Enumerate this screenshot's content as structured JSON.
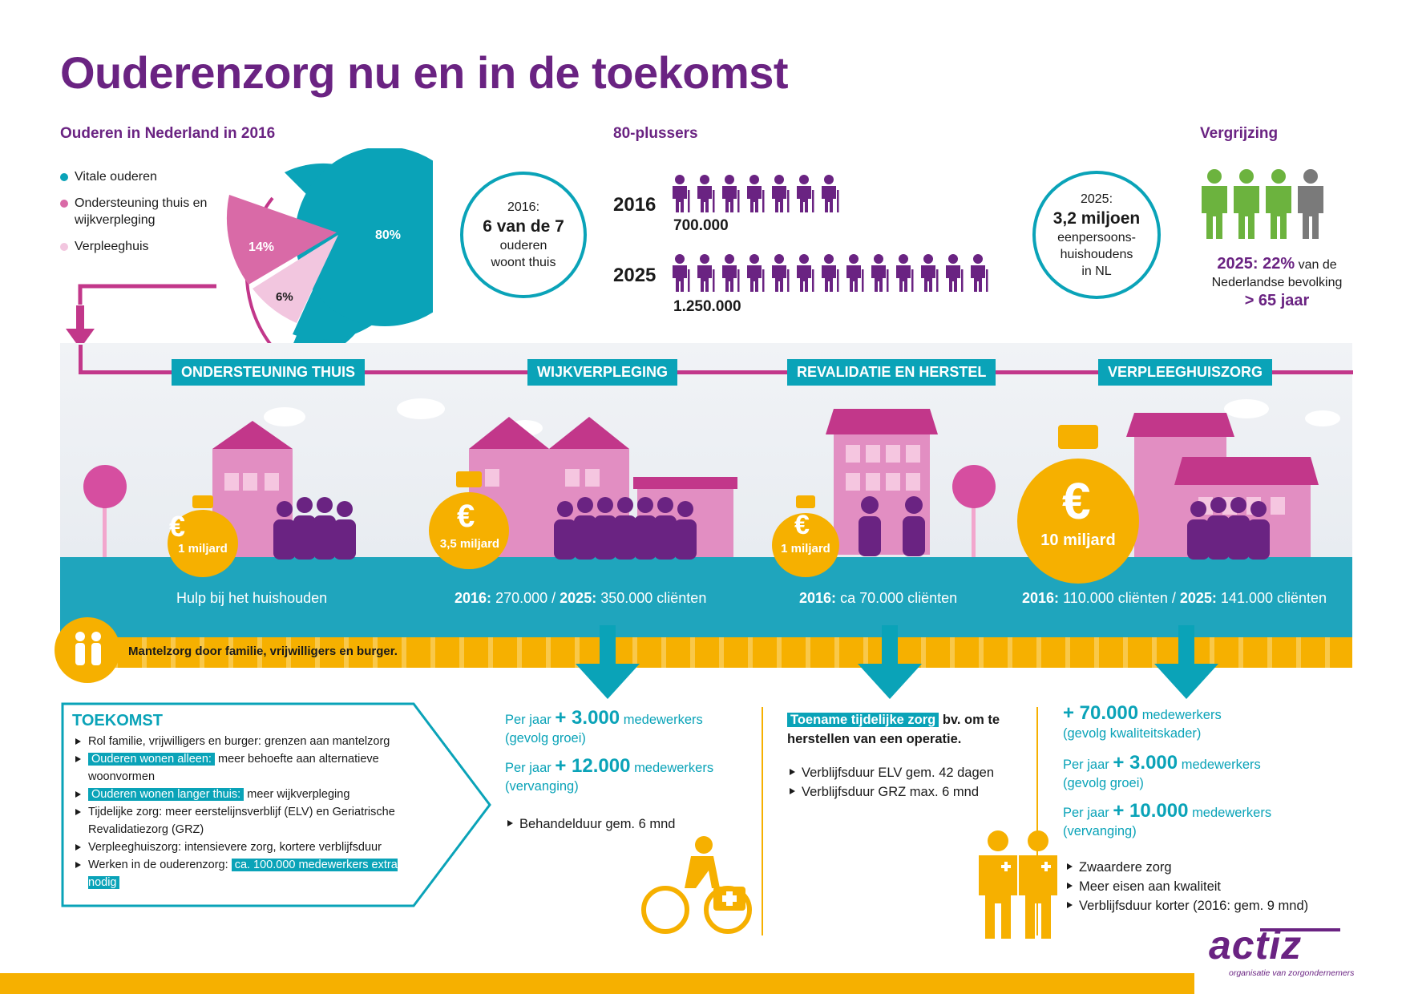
{
  "title": "Ouderenzorg nu en in de toekomst",
  "section_elderly": {
    "heading": "Ouderen in Nederland in 2016",
    "legend": [
      {
        "label": "Vitale ouderen",
        "color": "#0aa3b8"
      },
      {
        "label": "Ondersteuning thuis en wijkverpleging",
        "color": "#d96aa7"
      },
      {
        "label": "Verpleeghuis",
        "color": "#f2c6df"
      }
    ],
    "pie": {
      "vital": "80%",
      "support": "14%",
      "nursing": "6%"
    }
  },
  "badge_home": {
    "line1": "2016:",
    "line2": "6 van de 7",
    "line3": "ouderen",
    "line4": "woont thuis"
  },
  "section_80plus": {
    "heading": "80-plussers",
    "row1": {
      "year": "2016",
      "value": "700.000",
      "icons": 7
    },
    "row2": {
      "year": "2025",
      "value": "1.250.000",
      "icons": 13
    }
  },
  "badge_households": {
    "line1": "2025:",
    "line2": "3,2 miljoen",
    "line3": "eenpersoons-",
    "line4": "huishoudens",
    "line5": "in NL"
  },
  "section_aging": {
    "heading": "Vergrijzing",
    "line1_strong": "2025: 22%",
    "line1_rest": "van de",
    "line2": "Nederlandse bevolking",
    "line3": "> 65 jaar"
  },
  "timeline": {
    "labels": [
      "ONDERSTEUNING THUIS",
      "WIJKVERPLEGING",
      "REVALIDATIE EN HERSTEL",
      "VERPLEEGHUISZORG"
    ]
  },
  "scenes": [
    {
      "amount": "1 miljard",
      "euro": "€",
      "caption": "Hulp bij het huishouden"
    },
    {
      "amount": "3,5 miljard",
      "euro": "€",
      "caption_y1": "2016:",
      "caption_v1": "270.000 /",
      "caption_y2": "2025:",
      "caption_v2": "350.000 cliënten"
    },
    {
      "amount": "1 miljard",
      "euro": "€",
      "caption_y1": "2016:",
      "caption_v1": "ca 70.000 cliënten"
    },
    {
      "amount": "10 miljard",
      "euro": "€",
      "caption_y1": "2016:",
      "caption_v1": "110.000 cliënten /",
      "caption_y2": "2025:",
      "caption_v2": "141.000 cliënten"
    }
  ],
  "mantelzorg": "Mantelzorg door familie, vrijwilligers en burger.",
  "toekomst": {
    "heading": "TOEKOMST",
    "items": [
      {
        "pre": "",
        "hl": "",
        "text": "Rol familie, vrijwilligers en burger: grenzen aan mantelzorg"
      },
      {
        "pre": "",
        "hl": "Ouderen wonen alleen:",
        "text": "meer behoefte aan alternatieve woonvormen"
      },
      {
        "pre": "",
        "hl": "Ouderen wonen langer thuis:",
        "text": "meer wijkverpleging"
      },
      {
        "pre": "",
        "hl": "",
        "text": "Tijdelijke zorg: meer eerstelijnsverblijf (ELV) en Geriatrische Revalidatiezorg (GRZ)"
      },
      {
        "pre": "",
        "hl": "",
        "text": "Verpleeghuiszorg: intensievere zorg, kortere verblijfsduur"
      },
      {
        "pre": "Werken in de ouderenzorg:",
        "hl": "ca. 100.000 medewerkers extra nodig",
        "text": ""
      }
    ]
  },
  "col_wijk": {
    "s1_pre": "Per jaar",
    "s1_num": "+ 3.000",
    "s1_unit": "medewerkers",
    "s1_note": "(gevolg groei)",
    "s2_pre": "Per jaar",
    "s2_num": "+ 12.000",
    "s2_unit": "medewerkers",
    "s2_note": "(vervanging)",
    "bullet": "Behandelduur gem. 6 mnd"
  },
  "col_reval": {
    "hl": "Toename tijdelijke zorg",
    "text": "bv. om te herstellen van een operatie.",
    "bullets": [
      "Verblijfsduur ELV gem. 42 dagen",
      "Verblijfsduur GRZ max. 6 mnd"
    ]
  },
  "col_verpleeg": {
    "s1_num": "+ 70.000",
    "s1_unit": "medewerkers",
    "s1_note": "(gevolg kwaliteitskader)",
    "s2_pre": "Per jaar",
    "s2_num": "+ 3.000",
    "s2_unit": "medewerkers",
    "s2_note": "(gevolg groei)",
    "s3_pre": "Per jaar",
    "s3_num": "+ 10.000",
    "s3_unit": "medewerkers",
    "s3_note": "(vervanging)",
    "bullets": [
      "Zwaardere zorg",
      "Meer eisen aan kwaliteit",
      "Verblijfsduur korter (2016: gem. 9 mnd)"
    ]
  },
  "logo": {
    "name": "actiz",
    "tagline": "organisatie van zorgondernemers"
  }
}
